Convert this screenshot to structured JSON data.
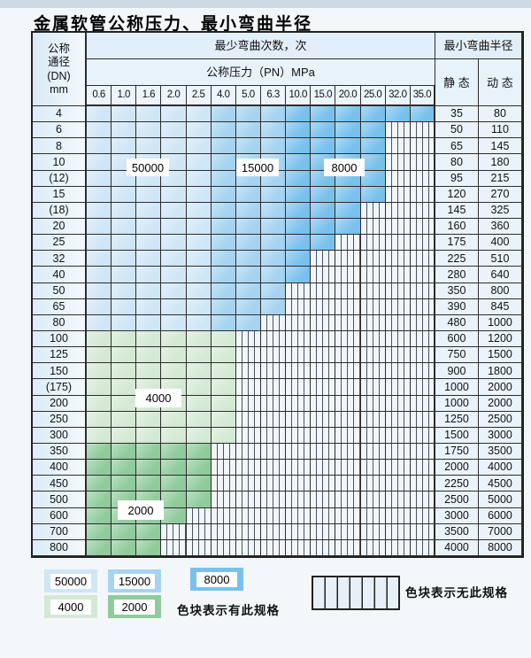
{
  "page": {
    "title": "金属软管公称压力、最小弯曲半径"
  },
  "table": {
    "corner_header": [
      "公称",
      "通径",
      "(DN)",
      "mm"
    ],
    "bend_cycles_header": "最少弯曲次数，次",
    "pressure_header": "公称压力（PN）MPa",
    "radius_header": "最小弯曲半径",
    "static_header": "静 态",
    "dynamic_header": "动 态",
    "pressure_columns": [
      "0.6",
      "1.0",
      "1.6",
      "2.0",
      "2.5",
      "4.0",
      "5.0",
      "6.3",
      "10.0",
      "15.0",
      "20.0",
      "25.0",
      "32.0",
      "35.0"
    ],
    "blue_band_limits": [
      5,
      8
    ],
    "rows": [
      {
        "dn": "4",
        "zone": "blue",
        "colored": 14,
        "static": "35",
        "dynamic": "80"
      },
      {
        "dn": "6",
        "zone": "blue",
        "colored": 12,
        "static": "50",
        "dynamic": "110"
      },
      {
        "dn": "8",
        "zone": "blue",
        "colored": 12,
        "static": "65",
        "dynamic": "145"
      },
      {
        "dn": "10",
        "zone": "blue",
        "colored": 12,
        "static": "80",
        "dynamic": "180"
      },
      {
        "dn": "(12)",
        "zone": "blue",
        "colored": 12,
        "static": "95",
        "dynamic": "215"
      },
      {
        "dn": "15",
        "zone": "blue",
        "colored": 12,
        "static": "120",
        "dynamic": "270"
      },
      {
        "dn": "(18)",
        "zone": "blue",
        "colored": 11,
        "static": "145",
        "dynamic": "325"
      },
      {
        "dn": "20",
        "zone": "blue",
        "colored": 11,
        "static": "160",
        "dynamic": "360"
      },
      {
        "dn": "25",
        "zone": "blue",
        "colored": 10,
        "static": "175",
        "dynamic": "400"
      },
      {
        "dn": "32",
        "zone": "blue",
        "colored": 9,
        "static": "225",
        "dynamic": "510"
      },
      {
        "dn": "40",
        "zone": "blue",
        "colored": 9,
        "static": "280",
        "dynamic": "640"
      },
      {
        "dn": "50",
        "zone": "blue",
        "colored": 8,
        "static": "350",
        "dynamic": "800"
      },
      {
        "dn": "65",
        "zone": "blue",
        "colored": 8,
        "static": "390",
        "dynamic": "845"
      },
      {
        "dn": "80",
        "zone": "blue",
        "colored": 7,
        "static": "480",
        "dynamic": "1000"
      },
      {
        "dn": "100",
        "zone": "green-4000",
        "colored": 6,
        "static": "600",
        "dynamic": "1200"
      },
      {
        "dn": "125",
        "zone": "green-4000",
        "colored": 6,
        "static": "750",
        "dynamic": "1500"
      },
      {
        "dn": "150",
        "zone": "green-4000",
        "colored": 6,
        "static": "900",
        "dynamic": "1800"
      },
      {
        "dn": "(175)",
        "zone": "green-4000",
        "colored": 6,
        "static": "1000",
        "dynamic": "2000"
      },
      {
        "dn": "200",
        "zone": "green-4000",
        "colored": 6,
        "static": "1000",
        "dynamic": "2000"
      },
      {
        "dn": "250",
        "zone": "green-4000",
        "colored": 6,
        "static": "1250",
        "dynamic": "2500"
      },
      {
        "dn": "300",
        "zone": "green-4000",
        "colored": 6,
        "static": "1500",
        "dynamic": "3000"
      },
      {
        "dn": "350",
        "zone": "green-2000",
        "colored": 5,
        "static": "1750",
        "dynamic": "3500"
      },
      {
        "dn": "400",
        "zone": "green-2000",
        "colored": 5,
        "static": "2000",
        "dynamic": "4000"
      },
      {
        "dn": "450",
        "zone": "green-2000",
        "colored": 5,
        "static": "2250",
        "dynamic": "4500"
      },
      {
        "dn": "500",
        "zone": "green-2000",
        "colored": 5,
        "static": "2500",
        "dynamic": "5000"
      },
      {
        "dn": "600",
        "zone": "green-2000",
        "colored": 4,
        "static": "3000",
        "dynamic": "6000"
      },
      {
        "dn": "700",
        "zone": "green-2000",
        "colored": 3,
        "static": "3500",
        "dynamic": "7000"
      },
      {
        "dn": "800",
        "zone": "green-2000",
        "colored": 3,
        "static": "4000",
        "dynamic": "8000"
      }
    ]
  },
  "overlays": {
    "b50000": "50000",
    "b15000": "15000",
    "b8000": "8000",
    "g4000": "4000",
    "g2000": "2000"
  },
  "legend": {
    "items": [
      {
        "label": "50000",
        "color": "#cfe6f7"
      },
      {
        "label": "15000",
        "color": "#a5d3f0"
      },
      {
        "label": "8000",
        "color": "#79c1ec"
      },
      {
        "label": "4000",
        "color": "#d4e9d4"
      },
      {
        "label": "2000",
        "color": "#90cb9b"
      }
    ],
    "has_spec_text": "色块表示有此规格",
    "no_spec_text": "色块表示无此规格"
  },
  "colors": {
    "c50000": "#cfe6f7",
    "c15000": "#a5d3f0",
    "c8000": "#79c1ec",
    "c4000": "#d4e9d4",
    "c2000": "#90cb9b"
  }
}
